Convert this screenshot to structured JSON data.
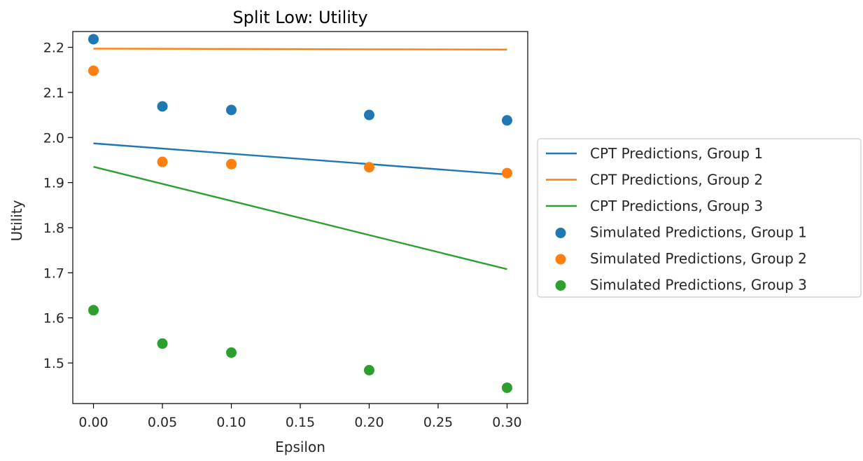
{
  "chart_data": {
    "type": "scatter",
    "title": "Split Low: Utility",
    "xlabel": "Epsilon",
    "ylabel": "Utility",
    "xlim": [
      -0.015,
      0.315
    ],
    "ylim": [
      1.41,
      2.235
    ],
    "xticks": [
      0.0,
      0.05,
      0.1,
      0.15,
      0.2,
      0.25,
      0.3
    ],
    "xtick_labels": [
      "0.00",
      "0.05",
      "0.10",
      "0.15",
      "0.20",
      "0.25",
      "0.30"
    ],
    "yticks": [
      1.5,
      1.6,
      1.7,
      1.8,
      1.9,
      2.0,
      2.1,
      2.2
    ],
    "ytick_labels": [
      "1.5",
      "1.6",
      "1.7",
      "1.8",
      "1.9",
      "2.0",
      "2.1",
      "2.2"
    ],
    "grid": false,
    "legend_position": "outside-right",
    "line_series": [
      {
        "name": "CPT Predictions, Group 1",
        "color": "#1f77b4",
        "x": [
          0.0,
          0.3
        ],
        "y": [
          1.987,
          1.918
        ]
      },
      {
        "name": "CPT Predictions, Group 2",
        "color": "#ff7f0e",
        "x": [
          0.0,
          0.3
        ],
        "y": [
          2.197,
          2.195
        ]
      },
      {
        "name": "CPT Predictions, Group 3",
        "color": "#2ca02c",
        "x": [
          0.0,
          0.3
        ],
        "y": [
          1.935,
          1.708
        ]
      }
    ],
    "scatter_series": [
      {
        "name": "Simulated Predictions, Group 1",
        "color": "#1f77b4",
        "x": [
          0.0,
          0.05,
          0.1,
          0.2,
          0.3
        ],
        "y": [
          2.218,
          2.069,
          2.061,
          2.05,
          2.038
        ]
      },
      {
        "name": "Simulated Predictions, Group 2",
        "color": "#ff7f0e",
        "x": [
          0.0,
          0.05,
          0.1,
          0.2,
          0.3
        ],
        "y": [
          2.148,
          1.946,
          1.941,
          1.934,
          1.921
        ]
      },
      {
        "name": "Simulated Predictions, Group 3",
        "color": "#2ca02c",
        "x": [
          0.0,
          0.05,
          0.1,
          0.2,
          0.3
        ],
        "y": [
          1.617,
          1.543,
          1.523,
          1.484,
          1.445
        ]
      }
    ]
  }
}
